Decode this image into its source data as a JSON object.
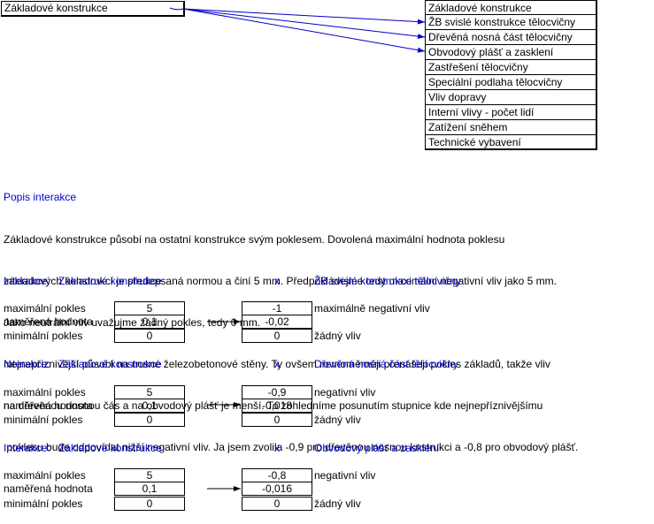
{
  "source_item": "Základové konstrukce",
  "targets": [
    "Základové konstrukce",
    "ŽB svislé konstrukce tělocvičny",
    "Dřevěná nosná část tělocvičny",
    "Obvodový plášť a zasklení",
    "Zastřešení tělocvičny",
    "Speciální podlaha tělocvičny",
    "Vliv dopravy",
    "Interní vlivy - počet lidí",
    "Zatížení sněhem",
    "Technické vybavení"
  ],
  "description": {
    "title": "Popis interakce",
    "lines": [
      "Základové konstrukce působí na ostatní konstrukce svým poklesem. Dovolená maximální hodnota poklesu",
      "základových konstrukcí je předepsaná normou a činí 5 mm. Předpokládejme tedy maximální negativní vliv jako 5 mm.",
      "Jako neutrální vliv uvažujme žádný pokles, tedy 0 mm.",
      "Nejnepříznivější působí na nosné železobetonové stěny. Ty ovšem rovnoměrněji přenášejí pokles základů, takže vliv",
      "na dřevěnou nosnou čás a na obvodový plášť je menší. To zohledníme posunutím stupnice kde nejnepříznivějšímu",
      " poklesu bude odpovídat nižší negativní vliv. Ja jsem zvolila -0,9 pro dřevěnou nosnou knstrukci a -0,8 pro obvodový plášť."
    ]
  },
  "interactions": [
    {
      "prefix": "Interakce:",
      "source": "Základové konstrukce",
      "times": "x",
      "target": "ŽB svislé konstrukce tělocvičny",
      "labels": [
        "maximální pokles",
        "naměřená hodnota",
        "minimální pokles"
      ],
      "left_values": [
        "5",
        "0,1",
        "0"
      ],
      "right_values": [
        "-1",
        "-0,02",
        "0"
      ],
      "right_labels": [
        "maximálně negativní vliv",
        "",
        "žádný vliv"
      ]
    },
    {
      "prefix": "Interakce:",
      "source": "Základové konstrukce",
      "times": "x",
      "target": "Dřevěná nosná část tělocvičny",
      "labels": [
        "maximální pokles",
        "naměřená hodnota",
        "minimální pokles"
      ],
      "left_values": [
        "5",
        "0,1",
        "0"
      ],
      "right_values": [
        "-0,9",
        "-0,018",
        "0"
      ],
      "right_labels": [
        "negativní vliv",
        "",
        "žádný vliv"
      ]
    },
    {
      "prefix": "Interakce:",
      "source": "Základové konstrukce",
      "times": "x",
      "target": "Obvodový plášť a zasklení",
      "labels": [
        "maximální pokles",
        "naměřená hodnota",
        "minimální pokles"
      ],
      "left_values": [
        "5",
        "0,1",
        "0"
      ],
      "right_values": [
        "-0,8",
        "-0,016",
        "0"
      ],
      "right_labels": [
        "negativní vliv",
        "",
        "žádný vliv"
      ]
    }
  ],
  "colors": {
    "link": "#0000cc",
    "text": "#000000"
  }
}
